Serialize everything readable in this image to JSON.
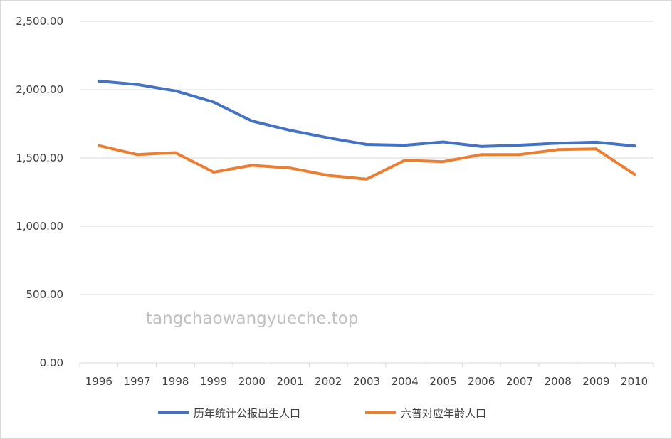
{
  "chart_data": {
    "type": "line",
    "title": "",
    "xlabel": "",
    "ylabel": "",
    "categories": [
      "1996",
      "1997",
      "1998",
      "1999",
      "2000",
      "2001",
      "2002",
      "2003",
      "2004",
      "2005",
      "2006",
      "2007",
      "2008",
      "2009",
      "2010"
    ],
    "ylim": [
      0,
      2500
    ],
    "yticks": [
      0,
      500,
      1000,
      1500,
      2000,
      2500
    ],
    "ytick_labels": [
      "0.00",
      "500.00",
      "1,000.00",
      "1,500.00",
      "2,000.00",
      "2,500.00"
    ],
    "grid": true,
    "legend_position": "bottom",
    "series": [
      {
        "name": "历年统计公报出生人口",
        "color": "#4472C4",
        "values": [
          2063,
          2038,
          1991,
          1909,
          1771,
          1702,
          1647,
          1599,
          1593,
          1617,
          1584,
          1594,
          1608,
          1615,
          1588
        ]
      },
      {
        "name": "六普对应年龄人口",
        "color": "#ED7D31",
        "values": [
          1590,
          1525,
          1539,
          1396,
          1446,
          1426,
          1372,
          1345,
          1483,
          1473,
          1525,
          1525,
          1561,
          1566,
          1380
        ]
      }
    ]
  },
  "watermark": "tangchaowangyueche.top"
}
